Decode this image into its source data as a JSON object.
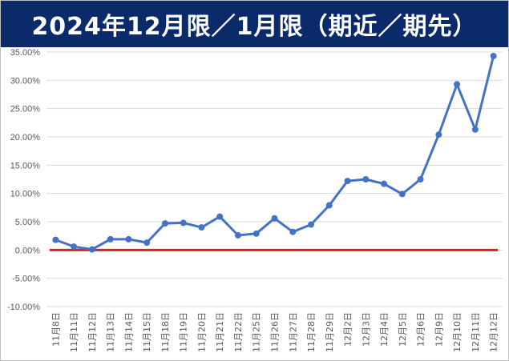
{
  "title": "2024年12月限／1月限（期近／期先）",
  "chart_data": {
    "type": "line",
    "title": "2024年12月限／1月限（期近／期先）",
    "xlabel": "",
    "ylabel": "",
    "ylim": [
      -10,
      35
    ],
    "ytick_step": 5,
    "ytick_labels": [
      "35.00%",
      "30.00%",
      "25.00%",
      "20.00%",
      "15.00%",
      "10.00%",
      "5.00%",
      "0.00%",
      "-5.00%",
      "-10.00%"
    ],
    "categories": [
      "11月8日",
      "11月11日",
      "11月12日",
      "11月13日",
      "11月14日",
      "11月15日",
      "11月18日",
      "11月19日",
      "11月20日",
      "11月21日",
      "11月22日",
      "11月25日",
      "11月26日",
      "11月27日",
      "11月28日",
      "11月29日",
      "12月2日",
      "12月3日",
      "12月4日",
      "12月5日",
      "12月6日",
      "12月9日",
      "12月10日",
      "12月11日",
      "12月12日"
    ],
    "series": [
      {
        "values": [
          1.8,
          0.6,
          0.1,
          1.9,
          1.9,
          1.3,
          4.7,
          4.8,
          4.0,
          5.9,
          2.6,
          2.9,
          5.6,
          3.2,
          4.5,
          7.9,
          12.2,
          12.5,
          11.7,
          9.9,
          12.5,
          20.4,
          29.3,
          21.3,
          34.3
        ]
      }
    ],
    "reference_line": {
      "value": 0,
      "color": "#e31c23"
    },
    "grid": true,
    "legend": "none",
    "colors": {
      "line": "#4472c4",
      "marker": "#4472c4",
      "grid": "#d9d9d9",
      "title_bg": "#0b2a6a",
      "title_text": "#ffffff"
    }
  }
}
